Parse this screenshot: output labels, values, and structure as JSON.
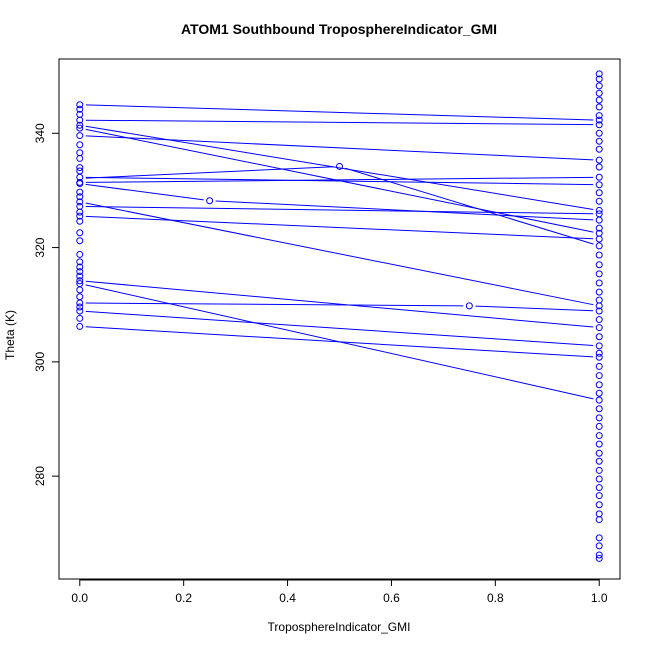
{
  "chart_data": {
    "type": "scatter",
    "title": "ATOM1 Southbound TroposphereIndicator_GMI",
    "xlabel": "TroposphereIndicator_GMI",
    "ylabel": "Theta (K)",
    "xlim": [
      -0.04,
      1.04
    ],
    "ylim": [
      262.0,
      353.0
    ],
    "x_ticks": [
      0.0,
      0.2,
      0.4,
      0.6,
      0.8,
      1.0
    ],
    "x_tick_labels": [
      "0.0",
      "0.2",
      "0.4",
      "0.6",
      "0.8",
      "1.0"
    ],
    "y_ticks": [
      280,
      300,
      320,
      340
    ],
    "y_tick_labels": [
      "280",
      "300",
      "320",
      "340"
    ],
    "grid": false,
    "legend": "none",
    "color": "#0000ff",
    "segments": [
      {
        "x": [
          0.0,
          1.0
        ],
        "y": [
          345.0,
          342.3
        ]
      },
      {
        "x": [
          0.0,
          1.0
        ],
        "y": [
          342.3,
          341.5
        ]
      },
      {
        "x": [
          0.0,
          1.0
        ],
        "y": [
          341.4,
          326.5
        ]
      },
      {
        "x": [
          0.0,
          1.0
        ],
        "y": [
          340.9,
          322.5
        ]
      },
      {
        "x": [
          0.0,
          1.0
        ],
        "y": [
          339.6,
          335.3
        ]
      },
      {
        "x": [
          0.0,
          0.5
        ],
        "y": [
          332.1,
          334.2
        ]
      },
      {
        "x": [
          0.5,
          1.0
        ],
        "y": [
          334.2,
          320.3
        ]
      },
      {
        "x": [
          0.0,
          1.0
        ],
        "y": [
          332.3,
          331.0
        ]
      },
      {
        "x": [
          0.0,
          1.0
        ],
        "y": [
          331.4,
          332.3
        ]
      },
      {
        "x": [
          0.0,
          0.25
        ],
        "y": [
          331.2,
          328.2
        ]
      },
      {
        "x": [
          0.25,
          1.0
        ],
        "y": [
          328.2,
          324.8
        ]
      },
      {
        "x": [
          0.0,
          1.0
        ],
        "y": [
          328.0,
          309.8
        ]
      },
      {
        "x": [
          0.0,
          1.0
        ],
        "y": [
          327.2,
          325.9
        ]
      },
      {
        "x": [
          0.0,
          1.0
        ],
        "y": [
          325.5,
          321.5
        ]
      },
      {
        "x": [
          0.0,
          1.0
        ],
        "y": [
          314.2,
          306.0
        ]
      },
      {
        "x": [
          0.0,
          1.0
        ],
        "y": [
          313.7,
          293.3
        ]
      },
      {
        "x": [
          0.0,
          0.75
        ],
        "y": [
          310.3,
          309.8
        ]
      },
      {
        "x": [
          0.75,
          1.0
        ],
        "y": [
          309.8,
          308.9
        ]
      },
      {
        "x": [
          0.0,
          1.0
        ],
        "y": [
          308.9,
          302.8
        ]
      },
      {
        "x": [
          0.0,
          1.0
        ],
        "y": [
          306.2,
          300.8
        ]
      }
    ],
    "points": [
      {
        "x": 0.25,
        "y": 328.2
      },
      {
        "x": 0.5,
        "y": 334.2
      },
      {
        "x": 0.75,
        "y": 309.8
      },
      {
        "x": 0.0,
        "y": 345.0
      },
      {
        "x": 0.0,
        "y": 344.2
      },
      {
        "x": 0.0,
        "y": 343.3
      },
      {
        "x": 0.0,
        "y": 342.3
      },
      {
        "x": 0.0,
        "y": 341.4
      },
      {
        "x": 0.0,
        "y": 340.9
      },
      {
        "x": 0.0,
        "y": 339.6
      },
      {
        "x": 0.0,
        "y": 338.0
      },
      {
        "x": 0.0,
        "y": 336.6
      },
      {
        "x": 0.0,
        "y": 335.6
      },
      {
        "x": 0.0,
        "y": 334.0
      },
      {
        "x": 0.0,
        "y": 333.4
      },
      {
        "x": 0.0,
        "y": 332.3
      },
      {
        "x": 0.0,
        "y": 331.4
      },
      {
        "x": 0.0,
        "y": 331.2
      },
      {
        "x": 0.0,
        "y": 329.7
      },
      {
        "x": 0.0,
        "y": 328.9
      },
      {
        "x": 0.0,
        "y": 328.0
      },
      {
        "x": 0.0,
        "y": 327.2
      },
      {
        "x": 0.0,
        "y": 326.2
      },
      {
        "x": 0.0,
        "y": 325.5
      },
      {
        "x": 0.0,
        "y": 324.6
      },
      {
        "x": 0.0,
        "y": 322.6
      },
      {
        "x": 0.0,
        "y": 321.2
      },
      {
        "x": 0.0,
        "y": 318.8
      },
      {
        "x": 0.0,
        "y": 317.5
      },
      {
        "x": 0.0,
        "y": 316.6
      },
      {
        "x": 0.0,
        "y": 315.8
      },
      {
        "x": 0.0,
        "y": 315.0
      },
      {
        "x": 0.0,
        "y": 314.2
      },
      {
        "x": 0.0,
        "y": 313.7
      },
      {
        "x": 0.0,
        "y": 312.6
      },
      {
        "x": 0.0,
        "y": 311.4
      },
      {
        "x": 0.0,
        "y": 310.3
      },
      {
        "x": 0.0,
        "y": 309.6
      },
      {
        "x": 0.0,
        "y": 308.9
      },
      {
        "x": 0.0,
        "y": 307.6
      },
      {
        "x": 0.0,
        "y": 306.2
      },
      {
        "x": 1.0,
        "y": 350.4
      },
      {
        "x": 1.0,
        "y": 349.5
      },
      {
        "x": 1.0,
        "y": 348.3
      },
      {
        "x": 1.0,
        "y": 347.0
      },
      {
        "x": 1.0,
        "y": 345.8
      },
      {
        "x": 1.0,
        "y": 344.6
      },
      {
        "x": 1.0,
        "y": 343.1
      },
      {
        "x": 1.0,
        "y": 342.3
      },
      {
        "x": 1.0,
        "y": 341.5
      },
      {
        "x": 1.0,
        "y": 340.0
      },
      {
        "x": 1.0,
        "y": 338.6
      },
      {
        "x": 1.0,
        "y": 337.2
      },
      {
        "x": 1.0,
        "y": 335.3
      },
      {
        "x": 1.0,
        "y": 334.1
      },
      {
        "x": 1.0,
        "y": 332.3
      },
      {
        "x": 1.0,
        "y": 331.0
      },
      {
        "x": 1.0,
        "y": 329.6
      },
      {
        "x": 1.0,
        "y": 328.1
      },
      {
        "x": 1.0,
        "y": 326.5
      },
      {
        "x": 1.0,
        "y": 325.9
      },
      {
        "x": 1.0,
        "y": 324.8
      },
      {
        "x": 1.0,
        "y": 323.4
      },
      {
        "x": 1.0,
        "y": 322.5
      },
      {
        "x": 1.0,
        "y": 321.5
      },
      {
        "x": 1.0,
        "y": 320.3
      },
      {
        "x": 1.0,
        "y": 318.7
      },
      {
        "x": 1.0,
        "y": 317.0
      },
      {
        "x": 1.0,
        "y": 315.4
      },
      {
        "x": 1.0,
        "y": 313.8
      },
      {
        "x": 1.0,
        "y": 312.2
      },
      {
        "x": 1.0,
        "y": 310.8
      },
      {
        "x": 1.0,
        "y": 309.8
      },
      {
        "x": 1.0,
        "y": 308.9
      },
      {
        "x": 1.0,
        "y": 307.4
      },
      {
        "x": 1.0,
        "y": 306.0
      },
      {
        "x": 1.0,
        "y": 304.4
      },
      {
        "x": 1.0,
        "y": 302.8
      },
      {
        "x": 1.0,
        "y": 301.5
      },
      {
        "x": 1.0,
        "y": 300.8
      },
      {
        "x": 1.0,
        "y": 299.2
      },
      {
        "x": 1.0,
        "y": 297.6
      },
      {
        "x": 1.0,
        "y": 296.0
      },
      {
        "x": 1.0,
        "y": 294.5
      },
      {
        "x": 1.0,
        "y": 293.3
      },
      {
        "x": 1.0,
        "y": 291.8
      },
      {
        "x": 1.0,
        "y": 290.2
      },
      {
        "x": 1.0,
        "y": 288.7
      },
      {
        "x": 1.0,
        "y": 287.1
      },
      {
        "x": 1.0,
        "y": 285.6
      },
      {
        "x": 1.0,
        "y": 284.0
      },
      {
        "x": 1.0,
        "y": 282.6
      },
      {
        "x": 1.0,
        "y": 281.0
      },
      {
        "x": 1.0,
        "y": 279.5
      },
      {
        "x": 1.0,
        "y": 278.0
      },
      {
        "x": 1.0,
        "y": 276.6
      },
      {
        "x": 1.0,
        "y": 275.0
      },
      {
        "x": 1.0,
        "y": 273.4
      },
      {
        "x": 1.0,
        "y": 272.4
      },
      {
        "x": 1.0,
        "y": 269.2
      },
      {
        "x": 1.0,
        "y": 267.8
      },
      {
        "x": 1.0,
        "y": 266.2
      },
      {
        "x": 1.0,
        "y": 265.6
      }
    ]
  }
}
